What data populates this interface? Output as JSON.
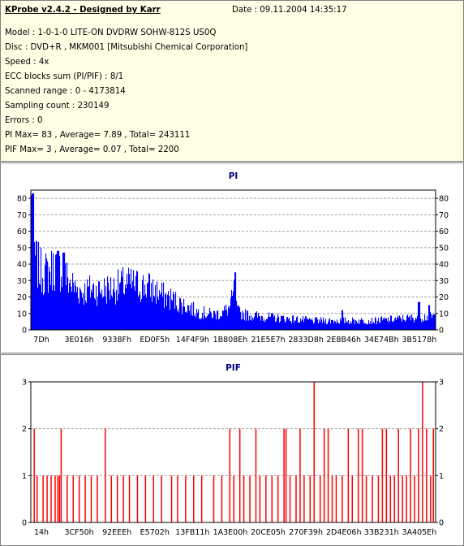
{
  "info": {
    "title": "KProbe v2.4.2 - Designed by Karr",
    "date": "Date : 09.11.2004 14:35:17",
    "lines": [
      "Model : 1-0-1-0 LITE-ON DVDRW SOHW-812S  US0Q",
      "Disc : DVD+R , MKM001 [Mitsubishi Chemical Corporation]",
      "Speed : 4x",
      "ECC blocks sum (PI/PIF) : 8/1",
      "Scanned range : 0 - 4173814",
      "Sampling count : 230149",
      "Errors : 0",
      "PI Max= 83 , Average= 7.89 , Total= 243111",
      "PIF Max= 3 , Average= 0.07 , Total= 2200"
    ]
  },
  "colors": {
    "pi_bar": "#0000ff",
    "pif_bar": "#ff0000",
    "title": "#000080",
    "grid": "#a0a0a0"
  },
  "chart_data": [
    {
      "type": "bar",
      "title": "PI",
      "ylim": [
        0,
        85
      ],
      "yticks": [
        0,
        10,
        20,
        30,
        40,
        50,
        60,
        70,
        80
      ],
      "grid": true,
      "xtick_labels": [
        "7Dh",
        "3E016h",
        "9338Fh",
        "ED0F5h",
        "14F4F9h",
        "1B808Eh",
        "21E5E7h",
        "2833D8h",
        "2E8B46h",
        "34E74Bh",
        "3B5178h"
      ],
      "profile": [
        [
          0.0,
          82
        ],
        [
          0.005,
          55
        ],
        [
          0.012,
          45
        ],
        [
          0.02,
          40
        ],
        [
          0.03,
          37
        ],
        [
          0.045,
          38
        ],
        [
          0.06,
          42
        ],
        [
          0.075,
          40
        ],
        [
          0.09,
          33
        ],
        [
          0.11,
          27
        ],
        [
          0.13,
          25
        ],
        [
          0.15,
          27
        ],
        [
          0.17,
          26
        ],
        [
          0.19,
          27
        ],
        [
          0.21,
          28
        ],
        [
          0.23,
          30
        ],
        [
          0.25,
          30
        ],
        [
          0.27,
          29
        ],
        [
          0.29,
          28
        ],
        [
          0.31,
          25
        ],
        [
          0.33,
          22
        ],
        [
          0.35,
          20
        ],
        [
          0.37,
          17
        ],
        [
          0.39,
          15
        ],
        [
          0.41,
          12
        ],
        [
          0.43,
          11
        ],
        [
          0.45,
          10
        ],
        [
          0.47,
          11
        ],
        [
          0.49,
          14
        ],
        [
          0.5,
          22
        ],
        [
          0.505,
          30
        ],
        [
          0.51,
          12
        ],
        [
          0.53,
          10
        ],
        [
          0.56,
          9
        ],
        [
          0.6,
          8
        ],
        [
          0.65,
          7
        ],
        [
          0.7,
          6
        ],
        [
          0.75,
          6
        ],
        [
          0.8,
          6
        ],
        [
          0.85,
          6
        ],
        [
          0.9,
          7
        ],
        [
          0.95,
          8
        ],
        [
          1.0,
          9
        ]
      ],
      "peaks": [
        [
          0.004,
          83
        ],
        [
          0.065,
          48
        ],
        [
          0.08,
          47
        ],
        [
          0.505,
          35
        ],
        [
          0.77,
          12
        ],
        [
          0.96,
          17
        ],
        [
          0.985,
          15
        ]
      ]
    },
    {
      "type": "bar",
      "title": "PIF",
      "ylim": [
        0,
        3
      ],
      "yticks": [
        0,
        1,
        2,
        3
      ],
      "grid": true,
      "xtick_labels": [
        "14h",
        "3CF50h",
        "92EEEh",
        "E5702h",
        "13FB11h",
        "1A3E00h",
        "20CE05h",
        "270F39h",
        "2D4E06h",
        "33B231h",
        "3A405Eh"
      ],
      "events": [
        [
          0.003,
          2
        ],
        [
          0.01,
          1
        ],
        [
          0.025,
          1
        ],
        [
          0.035,
          1
        ],
        [
          0.045,
          1
        ],
        [
          0.055,
          1
        ],
        [
          0.062,
          1
        ],
        [
          0.066,
          1
        ],
        [
          0.07,
          2
        ],
        [
          0.085,
          1
        ],
        [
          0.1,
          1
        ],
        [
          0.115,
          1
        ],
        [
          0.13,
          1
        ],
        [
          0.145,
          1
        ],
        [
          0.16,
          1
        ],
        [
          0.18,
          2
        ],
        [
          0.195,
          1
        ],
        [
          0.21,
          1
        ],
        [
          0.225,
          1
        ],
        [
          0.24,
          1
        ],
        [
          0.26,
          1
        ],
        [
          0.28,
          1
        ],
        [
          0.3,
          1
        ],
        [
          0.32,
          1
        ],
        [
          0.345,
          1
        ],
        [
          0.36,
          1
        ],
        [
          0.38,
          1
        ],
        [
          0.4,
          1
        ],
        [
          0.42,
          1
        ],
        [
          0.45,
          1
        ],
        [
          0.47,
          1
        ],
        [
          0.49,
          2
        ],
        [
          0.5,
          1
        ],
        [
          0.515,
          2
        ],
        [
          0.525,
          1
        ],
        [
          0.54,
          1
        ],
        [
          0.555,
          2
        ],
        [
          0.565,
          1
        ],
        [
          0.58,
          1
        ],
        [
          0.595,
          1
        ],
        [
          0.61,
          1
        ],
        [
          0.625,
          2
        ],
        [
          0.63,
          2
        ],
        [
          0.64,
          1
        ],
        [
          0.655,
          1
        ],
        [
          0.665,
          2
        ],
        [
          0.675,
          1
        ],
        [
          0.69,
          1
        ],
        [
          0.7,
          3
        ],
        [
          0.715,
          1
        ],
        [
          0.725,
          2
        ],
        [
          0.735,
          2
        ],
        [
          0.745,
          1
        ],
        [
          0.755,
          1
        ],
        [
          0.77,
          1
        ],
        [
          0.785,
          2
        ],
        [
          0.795,
          1
        ],
        [
          0.81,
          2
        ],
        [
          0.82,
          2
        ],
        [
          0.83,
          1
        ],
        [
          0.845,
          1
        ],
        [
          0.86,
          1
        ],
        [
          0.87,
          2
        ],
        [
          0.88,
          2
        ],
        [
          0.89,
          1
        ],
        [
          0.9,
          1
        ],
        [
          0.91,
          2
        ],
        [
          0.92,
          1
        ],
        [
          0.93,
          1
        ],
        [
          0.94,
          2
        ],
        [
          0.95,
          1
        ],
        [
          0.96,
          2
        ],
        [
          0.97,
          3
        ],
        [
          0.98,
          2
        ],
        [
          0.99,
          1
        ],
        [
          0.997,
          2
        ]
      ]
    }
  ]
}
